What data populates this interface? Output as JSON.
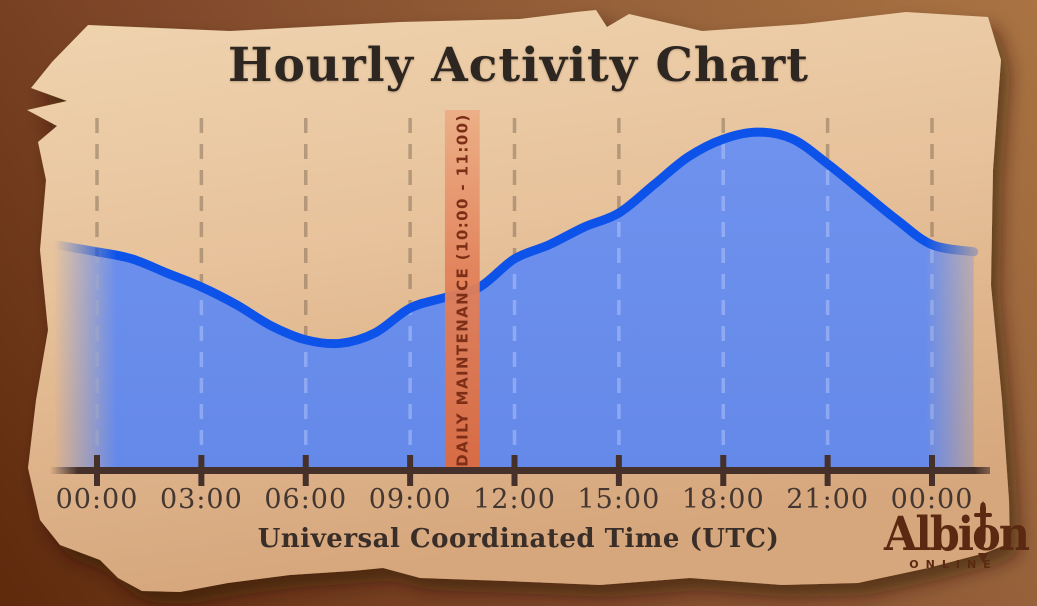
{
  "title": "Hourly Activity Chart",
  "x_axis": {
    "label": "Universal Coordinated Time (UTC)"
  },
  "logo": {
    "title": "Albion",
    "subtitle": "ONLINE"
  },
  "colors": {
    "background_brown": "#8a5530",
    "parchment": "#e9c8a3",
    "area_fill": "#698dec",
    "line_blue": "#0d53ea",
    "maintenance_band": "#df6f41",
    "maintenance_text": "#7c2f16",
    "axis_brown": "#46312a",
    "grid": "#6b5a48",
    "title_ink": "#2d2621",
    "logo_brown": "#5b2911"
  },
  "chart_data": {
    "type": "area",
    "title": "Hourly Activity Chart",
    "xlabel": "Universal Coordinated Time (UTC)",
    "ylabel": "",
    "x_hours": [
      0,
      1,
      2,
      3,
      4,
      5,
      6,
      7,
      8,
      9,
      10,
      11,
      12,
      13,
      14,
      15,
      16,
      17,
      18,
      19,
      20,
      21,
      22,
      23,
      24
    ],
    "values": [
      62,
      60,
      56,
      52,
      47,
      41,
      37,
      36,
      39,
      46,
      49,
      52,
      60,
      64,
      69,
      73,
      81,
      89,
      94,
      96,
      94,
      87,
      79,
      71,
      64
    ],
    "ylim": [
      0,
      100
    ],
    "grid": "dashed-vertical",
    "legend": "none",
    "x_ticks": {
      "hours": [
        0,
        3,
        6,
        9,
        12,
        15,
        18,
        21,
        24
      ],
      "labels": [
        "00:00",
        "03:00",
        "06:00",
        "09:00",
        "12:00",
        "15:00",
        "18:00",
        "21:00",
        "00:00"
      ]
    },
    "maintenance": {
      "label": "DAILY MAINTENANCE (10:00 - 11:00)",
      "from_hour": 10,
      "to_hour": 11
    }
  }
}
